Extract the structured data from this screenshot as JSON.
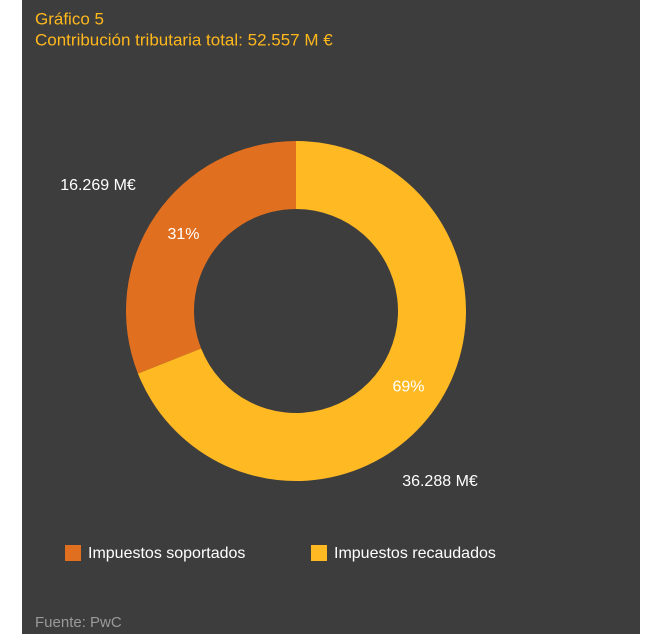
{
  "chart_data": {
    "type": "donut",
    "title": "Gráfico 5",
    "subtitle": "Contribución tributaria total: 52.557 M €",
    "series": [
      {
        "name": "Impuestos soportados",
        "color": "#e07020"
      },
      {
        "name": "Impuestos recaudados",
        "color": "#ffb923"
      }
    ],
    "values": [
      31,
      69
    ],
    "value_labels": [
      "31%",
      "69%"
    ],
    "amounts": [
      16269,
      36288
    ],
    "amount_labels": [
      "16.269 M€",
      "36.288 M€"
    ],
    "source": "Fuente: PwC"
  }
}
